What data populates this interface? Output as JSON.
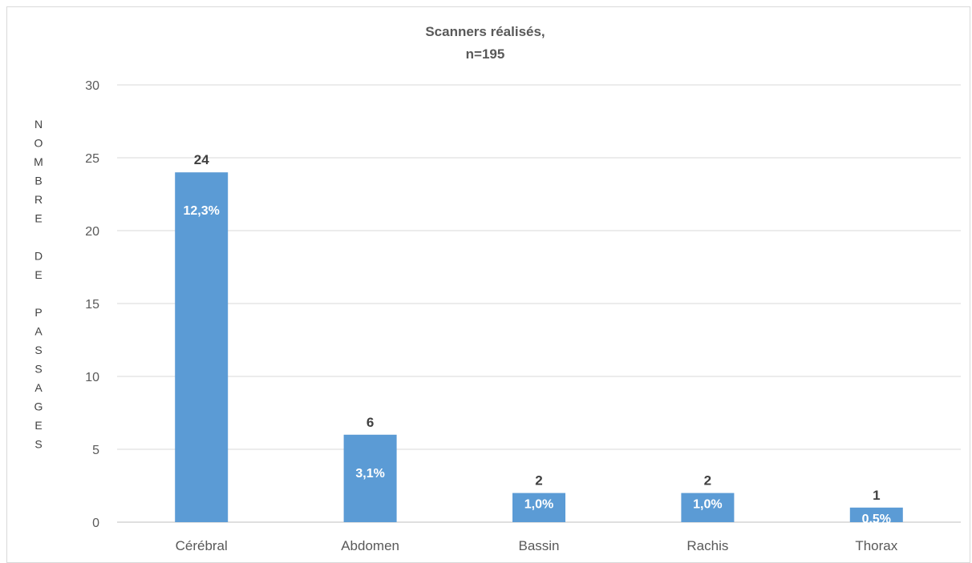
{
  "chart_data": {
    "type": "bar",
    "title_line1": "Scanners réalisés,",
    "title_line2": "n=195",
    "ylabel": "NOMBRE DE PASSAGES",
    "xlabel": "",
    "ylim": [
      0,
      30
    ],
    "yticks": [
      0,
      5,
      10,
      15,
      20,
      25,
      30
    ],
    "grid": true,
    "categories": [
      "Cérébral",
      "Abdomen",
      "Bassin",
      "Rachis",
      "Thorax"
    ],
    "values": [
      24,
      6,
      2,
      2,
      1
    ],
    "percent_labels": [
      "12,3%",
      "3,1%",
      "1,0%",
      "1,0%",
      "0,5%"
    ],
    "colors": {
      "bar": "#5B9BD5",
      "grid": "#d9d9d9",
      "axis": "#bfbfbf"
    }
  }
}
